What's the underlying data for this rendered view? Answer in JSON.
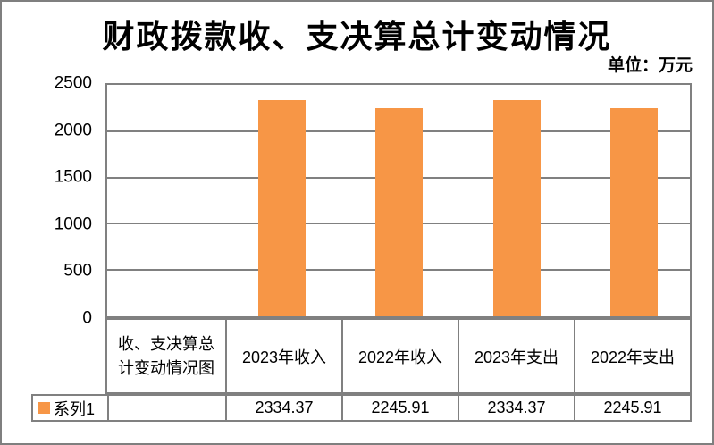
{
  "header": {
    "title": "财政拨款收、支决算总计变动情况",
    "unit_label": "单位：万元"
  },
  "chart_data": {
    "type": "bar",
    "title": "财政拨款收、支决算总计变动情况",
    "unit": "单位：万元",
    "categories": [
      "2023年收入",
      "2022年收入",
      "2023年支出",
      "2022年支出"
    ],
    "series": [
      {
        "name": "系列1",
        "values": [
          2334.37,
          2245.91,
          2334.37,
          2245.91
        ]
      }
    ],
    "ylim": [
      0,
      2500
    ],
    "yticks": [
      2500,
      2000,
      1500,
      1000,
      500,
      0
    ],
    "ytick_interval": 500,
    "grid": true,
    "legend_position": "bottom-left",
    "bar_color": "#F79646",
    "axis_color": "#808080"
  },
  "table": {
    "corner_header": "收、支决算总计变动情况图",
    "column_headers": [
      "2023年收入",
      "2022年收入",
      "2023年支出",
      "2022年支出"
    ],
    "rows": [
      {
        "legend": "系列1",
        "values": [
          "2334.37",
          "2245.91",
          "2334.37",
          "2245.91"
        ]
      }
    ]
  },
  "colors": {
    "bar": "#F79646",
    "border": "#808080",
    "text": "#000000",
    "background": "#FFFFFF"
  }
}
